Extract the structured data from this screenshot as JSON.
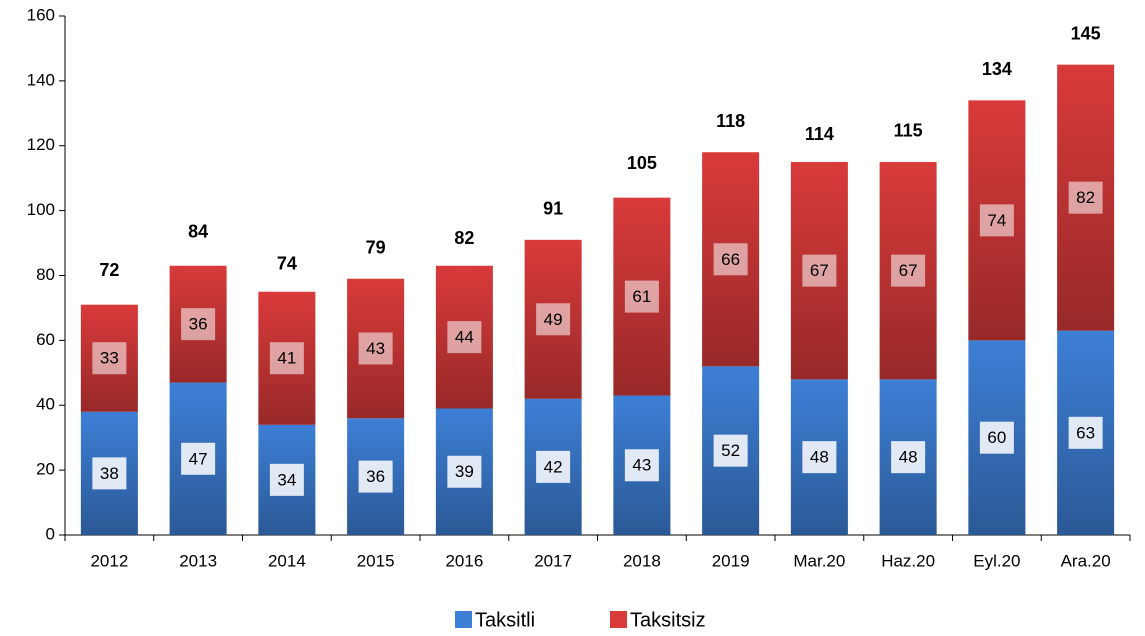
{
  "chart_data": {
    "type": "stacked_bar",
    "categories": [
      "2012",
      "2013",
      "2014",
      "2015",
      "2016",
      "2017",
      "2018",
      "2019",
      "Mar.20",
      "Haz.20",
      "Eyl.20",
      "Ara.20"
    ],
    "series": [
      {
        "name": "Taksitli",
        "color": "#3d7fd6",
        "values": [
          38,
          47,
          34,
          36,
          39,
          42,
          43,
          52,
          48,
          48,
          60,
          63
        ]
      },
      {
        "name": "Taksitsiz",
        "color": "#d93a3a",
        "values": [
          33,
          36,
          41,
          43,
          44,
          49,
          61,
          66,
          67,
          67,
          74,
          82
        ]
      }
    ],
    "totals": [
      72,
      84,
      74,
      79,
      82,
      91,
      105,
      118,
      114,
      115,
      134,
      145
    ],
    "ylim": [
      0,
      160
    ],
    "yticks": [
      0,
      20,
      40,
      60,
      80,
      100,
      120,
      140,
      160
    ],
    "legend": "bottom"
  }
}
